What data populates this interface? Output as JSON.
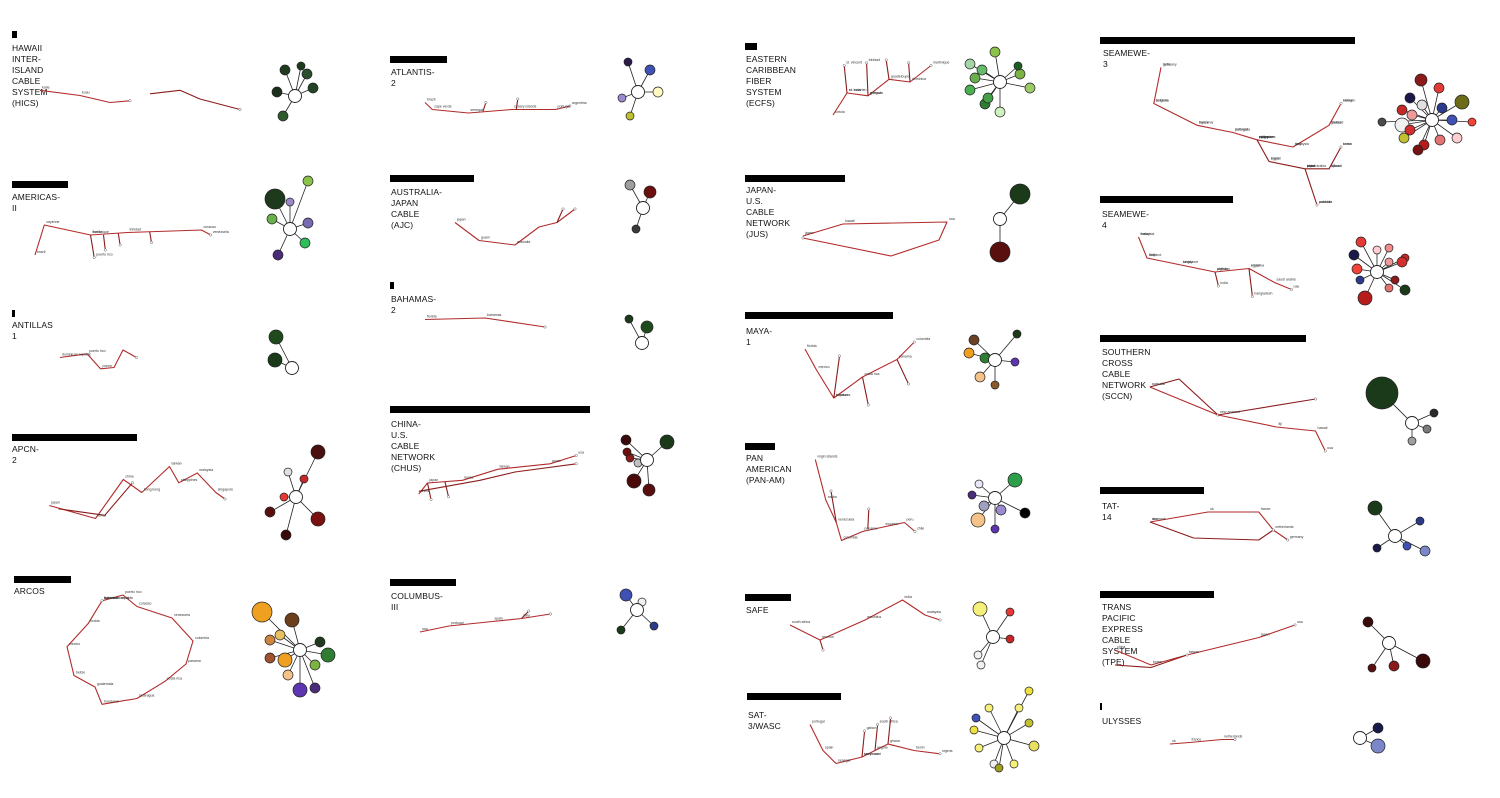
{
  "colors": {
    "route": "#b22b2b",
    "route_dark": "#8c1c1c",
    "outline": "#222222",
    "hub": "#ffffff"
  },
  "cables": [
    {
      "id": "hics",
      "title": "HAWAII INTER-ISLAND\nCABLE SYSTEM\n(HICS)",
      "landing_labels": [
        "kahe",
        "kuau"
      ],
      "nodes": [
        "#1f3a1f",
        "#2b4d2b",
        "#1a2e1a",
        "#224422",
        "#2e5a2e",
        "#1d3a1d"
      ]
    },
    {
      "id": "americas2",
      "title": "AMERICAS-II",
      "landing_labels": [
        "brazil",
        "cayenne",
        "martinique",
        "trinidad",
        "curacao",
        "venezuela",
        "florida",
        "puerto rico"
      ],
      "nodes": [
        "#1d3a1d",
        "#8bc34a",
        "#9b88c6",
        "#7a6bb0",
        "#6ab04c",
        "#2fbf5a",
        "#4a2d7a",
        "#213a21"
      ]
    },
    {
      "id": "antillas1",
      "title": "ANTILLAS 1",
      "landing_labels": [
        "dominican republic",
        "puerto rico",
        "ponce"
      ],
      "nodes": [
        "#1e4a1e",
        "#1a3a1a"
      ]
    },
    {
      "id": "apcn2",
      "title": "APCN-2",
      "landing_labels": [
        "japan",
        "korea",
        "china",
        "hong kong",
        "taiwan",
        "philippines",
        "malaysia",
        "singapore"
      ],
      "nodes": [
        "#4a1010",
        "#e0e0e0",
        "#c62828",
        "#e53935",
        "#5a0f0f",
        "#7a1010",
        "#3a0a0a",
        "#8b1a1a"
      ]
    },
    {
      "id": "arcos",
      "title": "ARCOS",
      "landing_labels": [
        "bahamas",
        "florida",
        "mexico",
        "belize",
        "guatemala",
        "honduras",
        "nicaragua",
        "costa rica",
        "panama",
        "colombia",
        "venezuela",
        "curacao",
        "puerto rico",
        "dominican republic",
        "turks and caicos"
      ],
      "nodes": [
        "#f0a020",
        "#6b3f1a",
        "#1f3a1f",
        "#2e7d32",
        "#a0522d",
        "#f0a020",
        "#7cb342",
        "#f5c28a",
        "#5e35b1",
        "#4a2d7a",
        "#cd853f",
        "#e8c060"
      ]
    },
    {
      "id": "atlantis2",
      "title": "ATLANTIS-2",
      "landing_labels": [
        "brazil",
        "cape verde",
        "senegal",
        "canary islands",
        "portugal",
        "argentina"
      ],
      "nodes": [
        "#2b1a4a",
        "#3f51b5",
        "#9c8ad0",
        "#c0c030",
        "#fffac0",
        "#b8b820"
      ]
    },
    {
      "id": "ajc",
      "title": "AUSTRALIA-JAPAN CABLE\n(AJC)",
      "landing_labels": [
        "japan",
        "guam",
        "australia"
      ],
      "nodes": [
        "#9e9e9e",
        "#6b0f0f",
        "#3a3a3a"
      ]
    },
    {
      "id": "bahamas2",
      "title": "BAHAMAS-2",
      "landing_labels": [
        "florida",
        "bahamas"
      ],
      "nodes": [
        "#1a3a1a",
        "#1e4a1e"
      ]
    },
    {
      "id": "chus",
      "title": "CHINA-U.S. CABLE NETWORK\n(CHUS)",
      "landing_labels": [
        "china",
        "japan",
        "korea",
        "taiwan",
        "guam",
        "usa"
      ],
      "nodes": [
        "#3a0a0a",
        "#1a3a1a",
        "#8b1a1a",
        "#c0c0c0",
        "#4a0a0a",
        "#5a0f0f",
        "#6b0f0f"
      ]
    },
    {
      "id": "columbus3",
      "title": "COLUMBUS-III",
      "landing_labels": [
        "usa",
        "portugal",
        "spain",
        "italy"
      ],
      "nodes": [
        "#3f51b5",
        "#f0f0f0",
        "#1a3a1a",
        "#2c3a8a"
      ]
    },
    {
      "id": "ecfs",
      "title": "EASTERN CARIBBEAN\nFIBER SYSTEM\n(ECFS)",
      "landing_labels": [
        "tortola",
        "st. maarten",
        "antigua",
        "guadeloupe",
        "dominica",
        "martinique",
        "st. lucia",
        "st. vincent",
        "grenada",
        "trinidad"
      ],
      "nodes": [
        "#8bc34a",
        "#a5d6a7",
        "#6ab04c",
        "#4caf50",
        "#2e7d32",
        "#d0f0c0",
        "#7cb342",
        "#9ccc65",
        "#43a047",
        "#66bb6a",
        "#1b5e20",
        "#c5e1a5"
      ]
    },
    {
      "id": "jus",
      "title": "JAPAN-U.S.\nCABLE NETWORK\n(JUS)",
      "landing_labels": [
        "japan",
        "hawaii",
        "usa"
      ],
      "nodes": [
        "#1a3a1a",
        "#5a0f0f"
      ]
    },
    {
      "id": "maya1",
      "title": "MAYA-1",
      "landing_labels": [
        "florida",
        "mexico",
        "honduras",
        "costa rica",
        "panama",
        "colombia",
        "cayman"
      ],
      "nodes": [
        "#1a3a1a",
        "#6b4226",
        "#f0a020",
        "#2e7d32",
        "#5e35b1",
        "#f5c28a",
        "#8b5a2b"
      ]
    },
    {
      "id": "panam",
      "title": "PAN AMERICAN\n(PAN-AM)",
      "landing_labels": [
        "virgin islands",
        "aruba",
        "venezuela",
        "colombia",
        "panama",
        "ecuador",
        "peru",
        "chile"
      ],
      "nodes": [
        "#2e9e4a",
        "#e8e8f8",
        "#4a2d7a",
        "#000000",
        "#9c8ad0",
        "#f5c28a",
        "#5e35b1",
        "#a0a0c0"
      ]
    },
    {
      "id": "safe",
      "title": "SAFE",
      "landing_labels": [
        "south africa",
        "reunion",
        "mauritius",
        "india",
        "malaysia"
      ],
      "nodes": [
        "#f5f07a",
        "#e53935",
        "#c62828",
        "#f0f0f0",
        "#f0f0f0"
      ]
    },
    {
      "id": "sat3",
      "title": "SAT-3/WASC",
      "landing_labels": [
        "portugal",
        "spain",
        "senegal",
        "ivory coast",
        "ghana",
        "benin",
        "nigeria",
        "cameroon",
        "gabon",
        "angola",
        "south africa"
      ],
      "nodes": [
        "#f5f07a",
        "#f0e040",
        "#3f51b5",
        "#c0c030",
        "#f5f07a",
        "#e8e060",
        "#f0f0f0",
        "#f5f07a",
        "#f0e040",
        "#f5f07a",
        "#a0a020"
      ]
    },
    {
      "id": "seamewe3",
      "title": "SEAMEWE-3",
      "landing_labels": [
        "germany",
        "belgium",
        "france",
        "portugal",
        "morocco",
        "italy",
        "greece",
        "turkey",
        "cyprus",
        "egypt",
        "saudi arabia",
        "djibouti",
        "oman",
        "uae",
        "pakistan",
        "india",
        "sri lanka",
        "myanmar",
        "indonesia",
        "singapore",
        "malaysia",
        "thailand",
        "vietnam",
        "philippines",
        "brunei",
        "china",
        "taiwan",
        "korea",
        "japan",
        "australia"
      ],
      "nodes": [
        "#8b1a1a",
        "#e53935",
        "#6b6b1a",
        "#1a1a4a",
        "#ef9a9a",
        "#c62828",
        "#2c3a8a",
        "#f0f0f0",
        "#d32f2f",
        "#b71c1c",
        "#e57373",
        "#3f51b5",
        "#ffcdd2",
        "#7a1010",
        "#c0c030",
        "#4a4a4a",
        "#f44336",
        "#e0e0e0"
      ]
    },
    {
      "id": "seamewe4",
      "title": "SEAMEWE-4",
      "landing_labels": [
        "france",
        "italy",
        "tunisia",
        "algeria",
        "egypt",
        "saudi arabia",
        "uae",
        "pakistan",
        "india",
        "sri lanka",
        "bangladesh",
        "malaysia",
        "thailand",
        "singapore"
      ],
      "nodes": [
        "#e53935",
        "#f28b8b",
        "#c62828",
        "#1a1a4a",
        "#ef9a9a",
        "#d32f2f",
        "#2c3a8a",
        "#f44336",
        "#1a3a1a",
        "#e57373",
        "#b71c1c",
        "#ffcdd2",
        "#8b1a1a"
      ]
    },
    {
      "id": "sccn",
      "title": "SOUTHERN CROSS\nCABLE NETWORK\n(SCCN)",
      "landing_labels": [
        "australia",
        "new zealand",
        "fiji",
        "hawaii",
        "usa"
      ],
      "nodes": [
        "#1a3a1a",
        "#2a2a2a",
        "#7a7a7a",
        "#9e9e9e"
      ]
    },
    {
      "id": "tat14",
      "title": "TAT-14",
      "landing_labels": [
        "usa",
        "uk",
        "france",
        "netherlands",
        "germany",
        "denmark"
      ],
      "nodes": [
        "#1a3a1a",
        "#2c3a8a",
        "#7b87c9",
        "#3f51b5",
        "#1a1a4a",
        "#9fa8da"
      ]
    },
    {
      "id": "tpe",
      "title": "TRANS PACIFIC EXPRESS\nCABLE SYSTEM (TPE)",
      "landing_labels": [
        "china",
        "korea",
        "taiwan",
        "japan",
        "usa"
      ],
      "nodes": [
        "#3a0a0a",
        "#5a0f0f",
        "#8b1a1a",
        "#3a0a0a"
      ]
    },
    {
      "id": "ulysses",
      "title": "ULYSSES",
      "landing_labels": [
        "uk",
        "france",
        "netherlands"
      ],
      "nodes": [
        "#1a1a4a",
        "#7b87c9",
        "#f0f0f0"
      ]
    }
  ]
}
